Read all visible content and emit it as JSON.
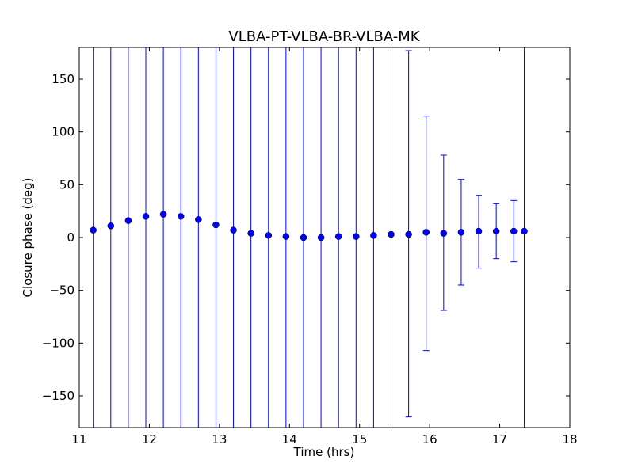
{
  "chart_data": {
    "type": "scatter",
    "title": "VLBA-PT-VLBA-BR-VLBA-MK",
    "xlabel": "Time (hrs)",
    "ylabel": "Closure phase (deg)",
    "xlim": [
      11,
      18
    ],
    "ylim": [
      -180,
      180
    ],
    "xticks": [
      11,
      12,
      13,
      14,
      15,
      16,
      17,
      18
    ],
    "yticks": [
      -150,
      -100,
      -50,
      0,
      50,
      100,
      150
    ],
    "xtick_labels": [
      "11",
      "12",
      "13",
      "14",
      "15",
      "16",
      "17",
      "18"
    ],
    "ytick_labels": [
      "−150",
      "−100",
      "−50",
      "0",
      "50",
      "100",
      "150"
    ],
    "grid": false,
    "legend": "none",
    "marker_color": "#0000ff",
    "errorbar_color": "#0000ff",
    "series": [
      {
        "x": [
          11.2,
          11.45,
          11.7,
          11.95,
          12.2,
          12.45,
          12.7,
          12.95,
          13.2,
          13.45,
          13.7,
          13.95,
          14.2,
          14.45,
          14.7,
          14.95,
          15.2,
          15.45,
          15.7,
          15.95,
          16.2,
          16.45,
          16.7,
          16.95,
          17.2,
          17.35
        ],
        "y": [
          7,
          11,
          16,
          20,
          22,
          20,
          17,
          12,
          7,
          4,
          2,
          1,
          0,
          0,
          1,
          1,
          2,
          3,
          3,
          5,
          4,
          5,
          6,
          6,
          6,
          6
        ],
        "yerr_lower": [
          -180,
          -180,
          -180,
          -180,
          -180,
          -180,
          -180,
          -180,
          -180,
          -180,
          -180,
          -180,
          -180,
          -180,
          -180,
          -180,
          -180,
          -180,
          -170,
          -107,
          -69,
          -45,
          -29,
          -20,
          -23,
          -180
        ],
        "yerr_upper": [
          180,
          180,
          180,
          180,
          180,
          180,
          180,
          180,
          180,
          180,
          180,
          180,
          180,
          180,
          180,
          180,
          180,
          180,
          177,
          115,
          78,
          55,
          40,
          32,
          35,
          180
        ],
        "cap_lower": [
          false,
          false,
          false,
          false,
          false,
          false,
          false,
          false,
          false,
          false,
          false,
          false,
          false,
          false,
          false,
          false,
          false,
          false,
          true,
          true,
          true,
          true,
          true,
          true,
          true,
          false
        ],
        "cap_upper": [
          false,
          false,
          false,
          false,
          false,
          false,
          false,
          false,
          false,
          false,
          false,
          false,
          false,
          false,
          false,
          false,
          false,
          false,
          true,
          true,
          true,
          true,
          true,
          true,
          true,
          false
        ]
      }
    ]
  }
}
